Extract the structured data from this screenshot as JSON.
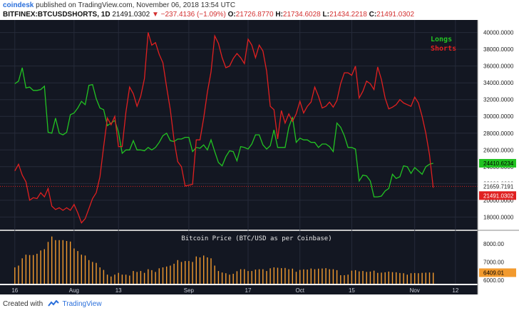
{
  "header": {
    "author": "coindesk",
    "published": "published on TradingView.com, November 06, 2018 13:54 UTC",
    "symbol": "BITFINEX:BTCUSDSHORTS, 1D",
    "last": "21491.0302",
    "change": "▼ −237.4136 (−1.09%)",
    "o_label": "O:",
    "o_value": "21726.8770",
    "h_label": "H:",
    "h_value": "21734.6028",
    "l_label": "L:",
    "l_value": "21434.2218",
    "c_label": "C:",
    "c_value": "21491.0302"
  },
  "footer": {
    "created_with": "Created with",
    "brand": "TradingView"
  },
  "colors": {
    "longs": "#22c322",
    "shorts": "#e02020",
    "volume": "#f29a2e",
    "background": "#131722"
  },
  "chart_data": [
    {
      "type": "line",
      "annotation": "",
      "x": [
        "2018-07-16",
        "2018-07-17",
        "2018-07-18",
        "2018-07-19",
        "2018-07-20",
        "2018-07-21",
        "2018-07-22",
        "2018-07-23",
        "2018-07-24",
        "2018-07-25",
        "2018-07-26",
        "2018-07-27",
        "2018-07-28",
        "2018-07-29",
        "2018-07-30",
        "2018-07-31",
        "2018-08-01",
        "2018-08-02",
        "2018-08-03",
        "2018-08-04",
        "2018-08-05",
        "2018-08-06",
        "2018-08-07",
        "2018-08-08",
        "2018-08-09",
        "2018-08-10",
        "2018-08-11",
        "2018-08-12",
        "2018-08-13",
        "2018-08-14",
        "2018-08-15",
        "2018-08-16",
        "2018-08-17",
        "2018-08-18",
        "2018-08-19",
        "2018-08-20",
        "2018-08-21",
        "2018-08-22",
        "2018-08-23",
        "2018-08-24",
        "2018-08-25",
        "2018-08-26",
        "2018-08-27",
        "2018-08-28",
        "2018-08-29",
        "2018-08-30",
        "2018-08-31",
        "2018-09-01",
        "2018-09-02",
        "2018-09-03",
        "2018-09-04",
        "2018-09-05",
        "2018-09-06",
        "2018-09-07",
        "2018-09-08",
        "2018-09-09",
        "2018-09-10",
        "2018-09-11",
        "2018-09-12",
        "2018-09-13",
        "2018-09-14",
        "2018-09-15",
        "2018-09-16",
        "2018-09-17",
        "2018-09-18",
        "2018-09-19",
        "2018-09-20",
        "2018-09-21",
        "2018-09-22",
        "2018-09-23",
        "2018-09-24",
        "2018-09-25",
        "2018-09-26",
        "2018-09-27",
        "2018-09-28",
        "2018-09-29",
        "2018-09-30",
        "2018-10-01",
        "2018-10-02",
        "2018-10-03",
        "2018-10-04",
        "2018-10-05",
        "2018-10-06",
        "2018-10-07",
        "2018-10-08",
        "2018-10-09",
        "2018-10-10",
        "2018-10-11",
        "2018-10-12",
        "2018-10-13",
        "2018-10-14",
        "2018-10-15",
        "2018-10-16",
        "2018-10-17",
        "2018-10-18",
        "2018-10-19",
        "2018-10-20",
        "2018-10-21",
        "2018-10-22",
        "2018-10-23",
        "2018-10-24",
        "2018-10-25",
        "2018-10-26",
        "2018-10-27",
        "2018-10-28",
        "2018-10-29",
        "2018-10-30",
        "2018-10-31",
        "2018-11-01",
        "2018-11-02",
        "2018-11-03",
        "2018-11-04",
        "2018-11-05",
        "2018-11-06"
      ],
      "x_ticks": [
        {
          "date": "2018-07-16",
          "label": "16"
        },
        {
          "date": "2018-08-01",
          "label": "Aug"
        },
        {
          "date": "2018-08-13",
          "label": "13"
        },
        {
          "date": "2018-09-01",
          "label": "Sep"
        },
        {
          "date": "2018-09-17",
          "label": "17"
        },
        {
          "date": "2018-10-01",
          "label": "Oct"
        },
        {
          "date": "2018-10-15",
          "label": "15"
        },
        {
          "date": "2018-11-01",
          "label": "Nov"
        },
        {
          "date": "2018-11-12",
          "label": "12"
        }
      ],
      "x_range": [
        "2018-07-12",
        "2018-11-18"
      ],
      "ylim": [
        16500,
        41500
      ],
      "y_ticks": [
        18000,
        20000,
        22000,
        24000,
        26000,
        28000,
        30000,
        32000,
        34000,
        36000,
        38000,
        40000
      ],
      "y_tick_labels": [
        "18000.0000",
        "20000.0000",
        "22000.0000",
        "24000.0000",
        "26000.0000",
        "28000.0000",
        "30000.0000",
        "32000.0000",
        "34000.0000",
        "36000.0000",
        "38000.0000",
        "40000.0000"
      ],
      "series": [
        {
          "name": "Longs",
          "color": "#22c322",
          "last_label": "24410.6234",
          "values": [
            33900,
            34200,
            35800,
            33400,
            33500,
            33100,
            33100,
            33200,
            33600,
            28100,
            28000,
            29800,
            28000,
            27800,
            28100,
            30200,
            30400,
            31000,
            31800,
            31400,
            33700,
            33800,
            32100,
            31000,
            30800,
            28900,
            29200,
            29500,
            28100,
            25600,
            26000,
            26000,
            27100,
            26000,
            26000,
            25900,
            26300,
            26000,
            26300,
            26900,
            27700,
            28000,
            27100,
            27000,
            27300,
            27300,
            27500,
            27500,
            25800,
            26300,
            26200,
            26600,
            26000,
            27200,
            25800,
            24500,
            24100,
            25200,
            25900,
            25800,
            24700,
            26400,
            26300,
            26100,
            26700,
            27800,
            27800,
            26600,
            26100,
            26500,
            28400,
            26300,
            26300,
            26300,
            28700,
            29900,
            26900,
            27400,
            27200,
            27200,
            26900,
            26900,
            26300,
            26700,
            26700,
            26400,
            25800,
            29200,
            28700,
            27700,
            26300,
            26300,
            26100,
            22300,
            23000,
            22900,
            22300,
            20400,
            20400,
            20500,
            21100,
            21400,
            23100,
            22600,
            22800,
            24100,
            24000,
            23200,
            23900,
            23500,
            23100,
            24000,
            24300,
            24411
          ]
        },
        {
          "name": "Shorts",
          "color": "#e02020",
          "last_label": "21491.0302",
          "values": [
            23500,
            24300,
            23000,
            22200,
            20000,
            20300,
            20200,
            20900,
            20400,
            21400,
            19300,
            18900,
            19100,
            18800,
            19100,
            18800,
            19500,
            18500,
            17300,
            17800,
            19000,
            20200,
            20900,
            22800,
            26400,
            29800,
            29000,
            30000,
            26400,
            26400,
            30500,
            33500,
            32700,
            31200,
            32400,
            34500,
            40000,
            38500,
            38800,
            37400,
            36400,
            33500,
            30800,
            27200,
            24600,
            24000,
            21700,
            21800,
            21900,
            27200,
            27200,
            29800,
            32900,
            35300,
            39600,
            38700,
            37000,
            35800,
            36000,
            36900,
            37500,
            37000,
            36300,
            39200,
            38500,
            37000,
            38500,
            37800,
            35400,
            31200,
            30800,
            27300,
            30700,
            29200,
            30300,
            29400,
            30300,
            31800,
            30400,
            31200,
            31700,
            33500,
            32400,
            31000,
            31200,
            31700,
            31100,
            31900,
            33900,
            35200,
            35200,
            34900,
            36000,
            32200,
            33000,
            34200,
            33900,
            33200,
            35900,
            34400,
            32200,
            30900,
            31100,
            31400,
            32000,
            31600,
            31400,
            31200,
            32300,
            31600,
            30000,
            28000,
            25400,
            21491
          ]
        }
      ],
      "price_label": "21659.7191"
    },
    {
      "type": "bar",
      "title": "Bitcoin Price (BTC/USD as per Coinbase)",
      "ylim": [
        5800,
        8700
      ],
      "y_ticks": [
        6000,
        7000,
        8000
      ],
      "y_tick_labels": [
        "6000.00",
        "7000.00",
        "8000.00"
      ],
      "last_label": "6409.01",
      "values": [
        6700,
        6800,
        7200,
        7400,
        7380,
        7380,
        7450,
        7630,
        7700,
        8100,
        8400,
        8200,
        8200,
        8200,
        8150,
        8120,
        7740,
        7600,
        7400,
        7350,
        7100,
        7000,
        6950,
        6700,
        6560,
        6300,
        6200,
        6300,
        6400,
        6300,
        6300,
        6250,
        6500,
        6450,
        6500,
        6400,
        6600,
        6550,
        6450,
        6650,
        6700,
        6750,
        6800,
        6900,
        7100,
        7000,
        7050,
        7050,
        7000,
        7300,
        7250,
        7350,
        7250,
        7200,
        6800,
        6500,
        6420,
        6380,
        6300,
        6350,
        6490,
        6600,
        6600,
        6500,
        6500,
        6580,
        6600,
        6600,
        6500,
        6650,
        6700,
        6680,
        6660,
        6670,
        6600,
        6630,
        6460,
        6560,
        6590,
        6580,
        6640,
        6600,
        6630,
        6640,
        6660,
        6600,
        6600,
        6550,
        6270,
        6270,
        6300,
        6520,
        6550,
        6480,
        6500,
        6450,
        6470,
        6520,
        6400,
        6410,
        6430,
        6470,
        6440,
        6430,
        6390,
        6380,
        6300,
        6380,
        6390,
        6380,
        6400,
        6410,
        6420,
        6409
      ]
    }
  ]
}
